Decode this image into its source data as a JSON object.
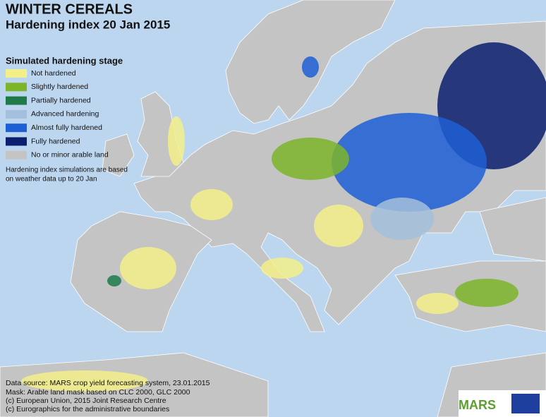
{
  "header": {
    "title": "WINTER CEREALS",
    "subtitle": "Hardening index 20 Jan 2015"
  },
  "legend": {
    "title": "Simulated hardening stage",
    "items": [
      {
        "label": "Not hardened",
        "color": "#f3f08a"
      },
      {
        "label": "Slightly hardened",
        "color": "#7db52a"
      },
      {
        "label": "Partially hardened",
        "color": "#1f7a4a"
      },
      {
        "label": "Advanced hardening",
        "color": "#a3bfdc"
      },
      {
        "label": "Almost fully hardened",
        "color": "#1f5fd6"
      },
      {
        "label": "Fully hardened",
        "color": "#0c1e6e"
      },
      {
        "label": "No or minor arable land",
        "color": "#c4c4c4"
      }
    ]
  },
  "note": {
    "lines": [
      "Hardening index simulations are based",
      "on weather data up to 20 Jan"
    ]
  },
  "footer": {
    "lines": [
      "Data source: MARS crop yield forecasting system, 23.01.2015",
      "Mask: Arable land mask based on CLC 2000, GLC 2000",
      "(c) European Union, 2015 Joint Research Centre",
      "(c) Eurographics for the administrative boundaries"
    ]
  },
  "logo": "MARS"
}
